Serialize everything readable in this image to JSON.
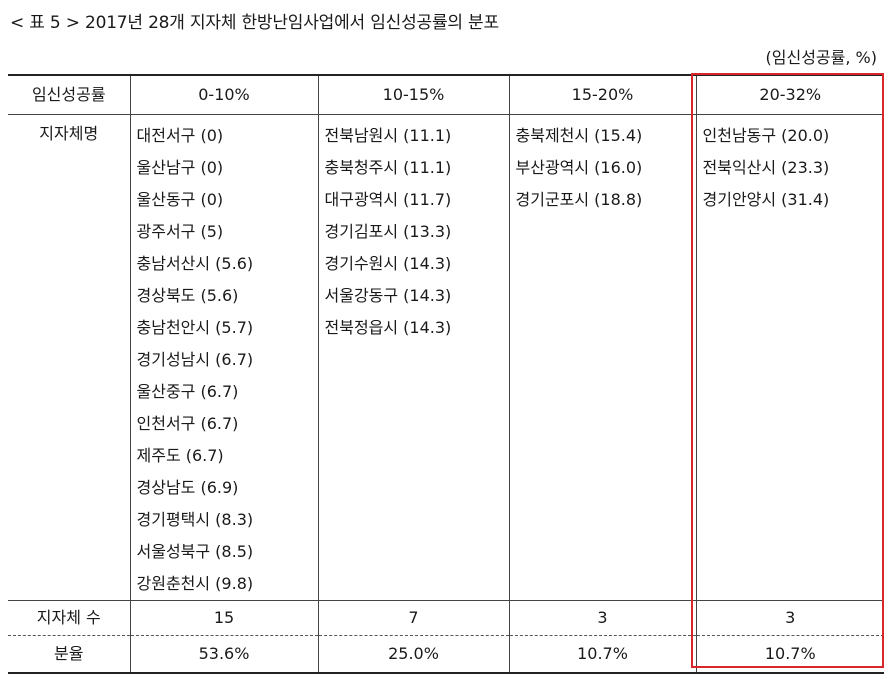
{
  "caption": "< 표 5 > 2017년 28개 지자체 한방난임사업에서 임신성공률의 분포",
  "unit": "(임신성공률, %)",
  "header": {
    "row_label": "임신성공률",
    "ranges": [
      "0-10%",
      "10-15%",
      "15-20%",
      "20-32%"
    ]
  },
  "body": {
    "row_label": "지자체명",
    "columns": [
      [
        "대전서구 (0)",
        "울산남구 (0)",
        "울산동구 (0)",
        "광주서구 (5)",
        "충남서산시 (5.6)",
        "경상북도 (5.6)",
        "충남천안시 (5.7)",
        "경기성남시 (6.7)",
        "울산중구 (6.7)",
        "인천서구 (6.7)",
        "제주도 (6.7)",
        "경상남도 (6.9)",
        "경기평택시 (8.3)",
        "서울성북구 (8.5)",
        "강원춘천시 (9.8)"
      ],
      [
        "전북남원시 (11.1)",
        "충북청주시 (11.1)",
        "대구광역시 (11.7)",
        "경기김포시 (13.3)",
        "경기수원시 (14.3)",
        "서울강동구 (14.3)",
        "전북정읍시 (14.3)"
      ],
      [
        "충북제천시 (15.4)",
        "부산광역시 (16.0)",
        "경기군포시 (18.8)"
      ],
      [
        "인천남동구 (20.0)",
        "전북익산시 (23.3)",
        "경기안양시 (31.4)"
      ]
    ]
  },
  "count_row": {
    "label": "지자체 수",
    "values": [
      "15",
      "7",
      "3",
      "3"
    ]
  },
  "ratio_row": {
    "label": "분율",
    "values": [
      "53.6%",
      "25.0%",
      "10.7%",
      "10.7%"
    ]
  },
  "highlight_color": "#d9262b"
}
